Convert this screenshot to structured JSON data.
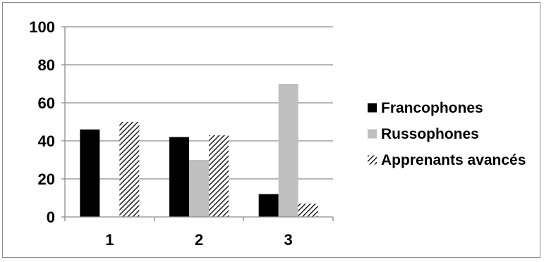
{
  "chart_data": {
    "type": "bar",
    "categories": [
      "1",
      "2",
      "3"
    ],
    "series": [
      {
        "name": "Francophones",
        "values": [
          46,
          42,
          12
        ],
        "fill": "solid",
        "color": "#000000"
      },
      {
        "name": "Russophones",
        "values": [
          0,
          30,
          70
        ],
        "fill": "solid",
        "color": "#bfbfbf"
      },
      {
        "name": "Apprenants avancés",
        "values": [
          50,
          43,
          7
        ],
        "fill": "diagonal-hatch",
        "color": "#000000"
      }
    ],
    "ylim": [
      0,
      100
    ],
    "y_ticks": [
      0,
      20,
      40,
      60,
      80,
      100
    ],
    "grid": true,
    "legend_position": "right",
    "title": "",
    "xlabel": "",
    "ylabel": ""
  }
}
